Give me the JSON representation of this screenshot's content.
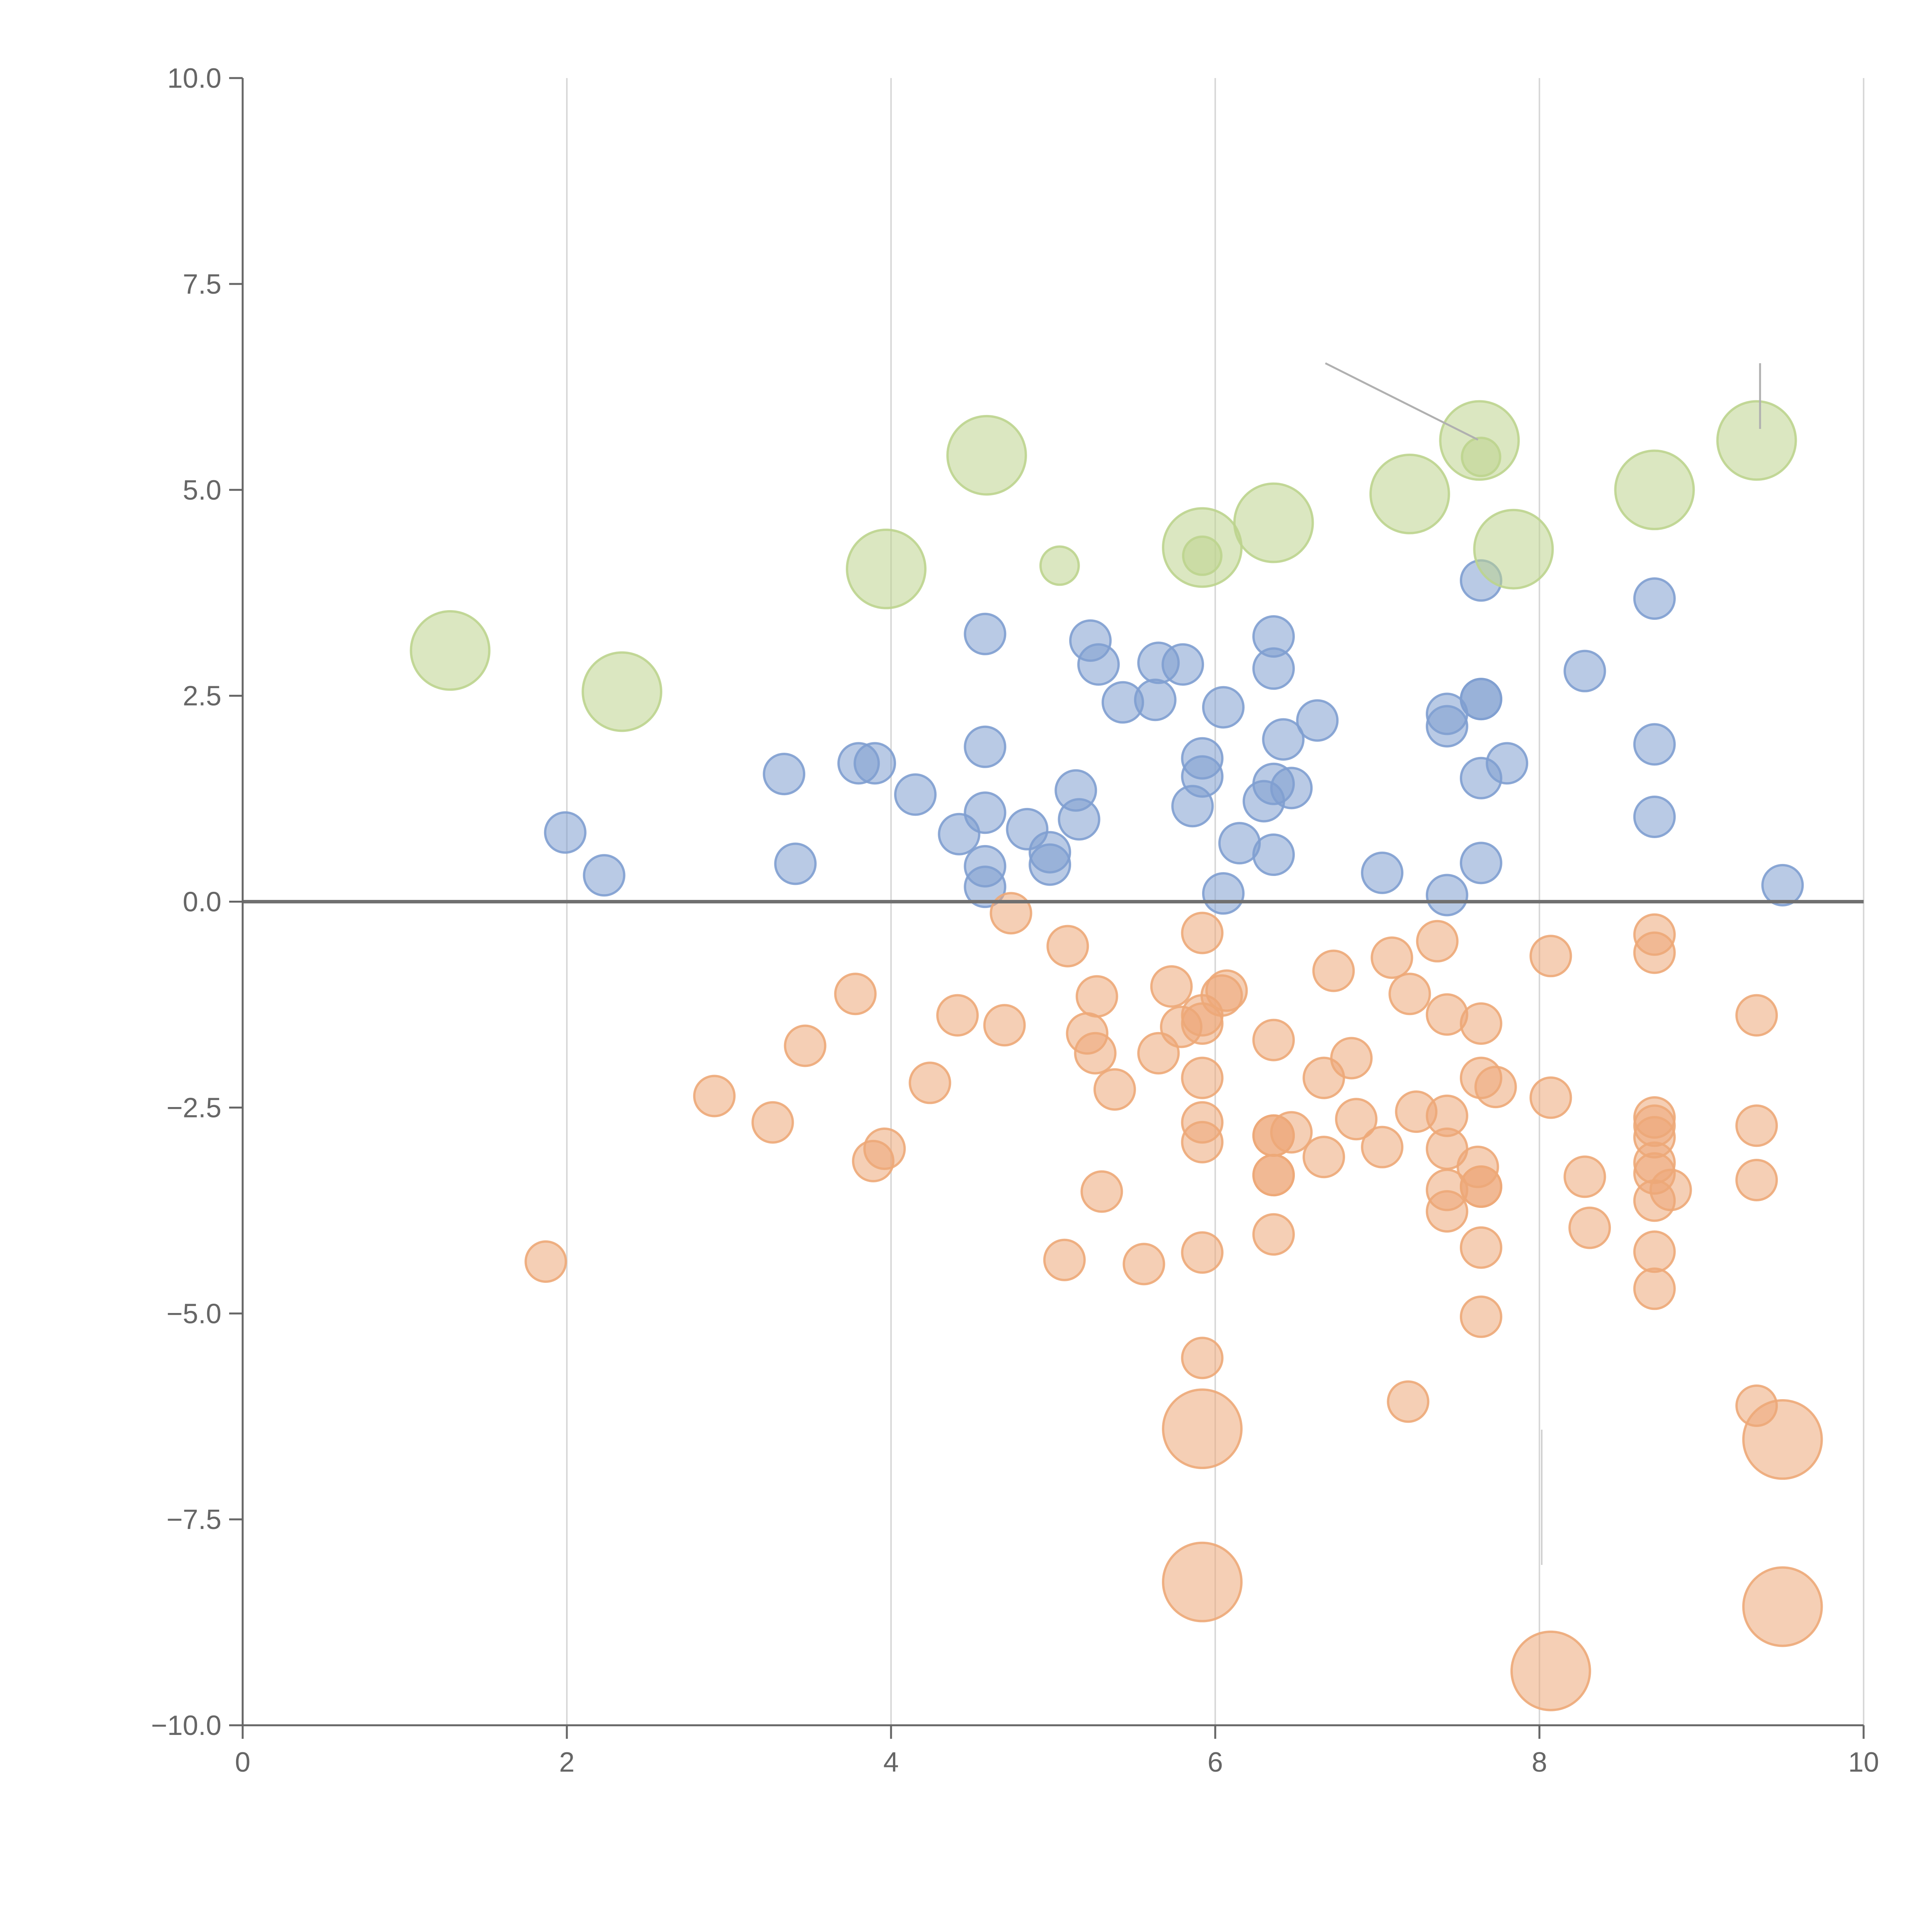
{
  "chart_data": {
    "type": "scatter",
    "title": "",
    "xlabel": "",
    "ylabel": "",
    "xlim": [
      0,
      10
    ],
    "ylim": [
      -10,
      10
    ],
    "x_ticks": [
      0,
      2,
      4,
      6,
      8,
      10
    ],
    "x_tick_labels": [
      "0",
      "2",
      "4",
      "6",
      "8",
      "10"
    ],
    "y_ticks": [
      10,
      7.5,
      5,
      2.5,
      0,
      -2.5,
      -5,
      -7.5,
      -10
    ],
    "y_tick_labels": [
      "10.0",
      "7.5",
      "5.0",
      "2.5",
      "0.0",
      "−2.5",
      "−5.0",
      "−7.5",
      "−10.0"
    ],
    "grid": "vertical",
    "reference_line_y": 0,
    "series": [
      {
        "name": "positive",
        "color": "#7f9fd0",
        "size": 1,
        "points": [
          [
            1.99,
            0.84
          ],
          [
            2.23,
            0.32
          ],
          [
            3.34,
            1.55
          ],
          [
            3.41,
            0.46
          ],
          [
            3.8,
            1.68
          ],
          [
            3.9,
            1.68
          ],
          [
            4.15,
            1.3
          ],
          [
            4.42,
            0.82
          ],
          [
            4.58,
            3.25
          ],
          [
            4.58,
            1.88
          ],
          [
            4.58,
            1.08
          ],
          [
            4.58,
            0.43
          ],
          [
            4.58,
            0.18
          ],
          [
            4.84,
            0.88
          ],
          [
            4.98,
            0.6
          ],
          [
            4.98,
            0.45
          ],
          [
            5.14,
            1.35
          ],
          [
            5.16,
            1.0
          ],
          [
            5.23,
            3.17
          ],
          [
            5.28,
            2.88
          ],
          [
            5.43,
            2.42
          ],
          [
            5.63,
            2.45
          ],
          [
            5.65,
            2.9
          ],
          [
            5.8,
            2.88
          ],
          [
            5.86,
            1.16
          ],
          [
            5.92,
            1.74
          ],
          [
            5.92,
            1.52
          ],
          [
            6.05,
            2.36
          ],
          [
            6.05,
            0.1
          ],
          [
            6.15,
            0.71
          ],
          [
            6.3,
            1.22
          ],
          [
            6.36,
            3.22
          ],
          [
            6.36,
            2.83
          ],
          [
            6.36,
            1.43
          ],
          [
            6.36,
            0.57
          ],
          [
            6.42,
            1.97
          ],
          [
            6.47,
            1.38
          ],
          [
            6.63,
            2.2
          ],
          [
            7.03,
            0.35
          ],
          [
            7.43,
            2.28
          ],
          [
            7.43,
            2.13
          ],
          [
            7.43,
            0.08
          ],
          [
            7.64,
            3.9
          ],
          [
            7.64,
            2.46
          ],
          [
            7.64,
            2.46
          ],
          [
            7.64,
            1.5
          ],
          [
            7.64,
            0.47
          ],
          [
            7.8,
            1.68
          ],
          [
            8.28,
            2.8
          ],
          [
            8.71,
            3.68
          ],
          [
            8.71,
            1.91
          ],
          [
            8.71,
            1.03
          ],
          [
            9.5,
            0.2
          ]
        ]
      },
      {
        "name": "negative",
        "color": "#eda878",
        "size": 1,
        "points": [
          [
            1.87,
            -4.37
          ],
          [
            2.91,
            -2.36
          ],
          [
            3.27,
            -2.68
          ],
          [
            3.47,
            -1.75
          ],
          [
            3.78,
            -1.12
          ],
          [
            3.89,
            -3.15
          ],
          [
            3.96,
            -3.0
          ],
          [
            4.24,
            -2.2
          ],
          [
            4.41,
            -1.38
          ],
          [
            4.7,
            -1.5
          ],
          [
            4.74,
            -0.14
          ],
          [
            5.07,
            -4.35
          ],
          [
            5.09,
            -0.54
          ],
          [
            5.21,
            -1.6
          ],
          [
            5.26,
            -1.84
          ],
          [
            5.27,
            -1.15
          ],
          [
            5.3,
            -3.52
          ],
          [
            5.38,
            -2.28
          ],
          [
            5.56,
            -4.4
          ],
          [
            5.65,
            -1.84
          ],
          [
            5.73,
            -1.03
          ],
          [
            5.79,
            -1.52
          ],
          [
            5.92,
            -0.38
          ],
          [
            5.92,
            -1.38
          ],
          [
            5.92,
            -1.48
          ],
          [
            5.92,
            -2.14
          ],
          [
            5.92,
            -2.68
          ],
          [
            5.92,
            -2.92
          ],
          [
            5.92,
            -4.26
          ],
          [
            5.92,
            -5.54
          ],
          [
            6.04,
            -1.14
          ],
          [
            6.07,
            -1.08
          ],
          [
            6.36,
            -1.68
          ],
          [
            6.36,
            -2.84
          ],
          [
            6.36,
            -2.84
          ],
          [
            6.36,
            -3.32
          ],
          [
            6.36,
            -3.32
          ],
          [
            6.36,
            -4.04
          ],
          [
            6.47,
            -2.8
          ],
          [
            6.67,
            -2.14
          ],
          [
            6.67,
            -3.1
          ],
          [
            6.73,
            -0.84
          ],
          [
            6.84,
            -1.9
          ],
          [
            6.87,
            -2.64
          ],
          [
            7.03,
            -2.98
          ],
          [
            7.09,
            -0.68
          ],
          [
            7.2,
            -1.12
          ],
          [
            7.24,
            -2.55
          ],
          [
            7.19,
            -6.07
          ],
          [
            7.37,
            -0.48
          ],
          [
            7.43,
            -1.37
          ],
          [
            7.43,
            -2.6
          ],
          [
            7.43,
            -3.0
          ],
          [
            7.43,
            -3.5
          ],
          [
            7.43,
            -3.76
          ],
          [
            7.62,
            -3.22
          ],
          [
            7.64,
            -1.48
          ],
          [
            7.64,
            -2.14
          ],
          [
            7.64,
            -3.46
          ],
          [
            7.64,
            -3.46
          ],
          [
            7.64,
            -4.2
          ],
          [
            7.64,
            -5.04
          ],
          [
            7.73,
            -2.25
          ],
          [
            8.07,
            -0.66
          ],
          [
            8.07,
            -2.38
          ],
          [
            8.28,
            -3.34
          ],
          [
            8.31,
            -3.96
          ],
          [
            8.71,
            -0.4
          ],
          [
            8.71,
            -0.62
          ],
          [
            8.71,
            -2.62
          ],
          [
            8.71,
            -2.72
          ],
          [
            8.71,
            -2.86
          ],
          [
            8.71,
            -3.17
          ],
          [
            8.71,
            -3.3
          ],
          [
            8.71,
            -3.63
          ],
          [
            8.71,
            -4.25
          ],
          [
            8.71,
            -4.7
          ],
          [
            8.81,
            -3.5
          ],
          [
            9.34,
            -1.38
          ],
          [
            9.34,
            -2.72
          ],
          [
            9.34,
            -3.38
          ],
          [
            9.34,
            -6.12
          ]
        ]
      },
      {
        "name": "large-positive",
        "color": "#bdd48e",
        "size": 1.95,
        "points": [
          [
            1.28,
            3.05
          ],
          [
            2.34,
            2.55
          ],
          [
            3.97,
            4.04
          ],
          [
            4.59,
            5.42
          ],
          [
            5.92,
            4.3
          ],
          [
            6.36,
            4.6
          ],
          [
            7.2,
            4.95
          ],
          [
            7.63,
            5.6
          ],
          [
            7.84,
            4.28
          ],
          [
            8.71,
            5.0
          ],
          [
            9.34,
            5.6
          ]
        ]
      },
      {
        "name": "small-positive",
        "color": "#bdd48e",
        "size": 0.95,
        "points": [
          [
            5.04,
            4.08
          ],
          [
            5.92,
            4.2
          ],
          [
            7.64,
            5.4
          ]
        ]
      },
      {
        "name": "large-negative",
        "color": "#eda878",
        "size": 1.95,
        "points": [
          [
            5.92,
            -6.4
          ],
          [
            5.92,
            -8.26
          ],
          [
            8.07,
            -9.34
          ],
          [
            9.5,
            -6.53
          ],
          [
            9.5,
            -8.56
          ]
        ]
      }
    ]
  }
}
